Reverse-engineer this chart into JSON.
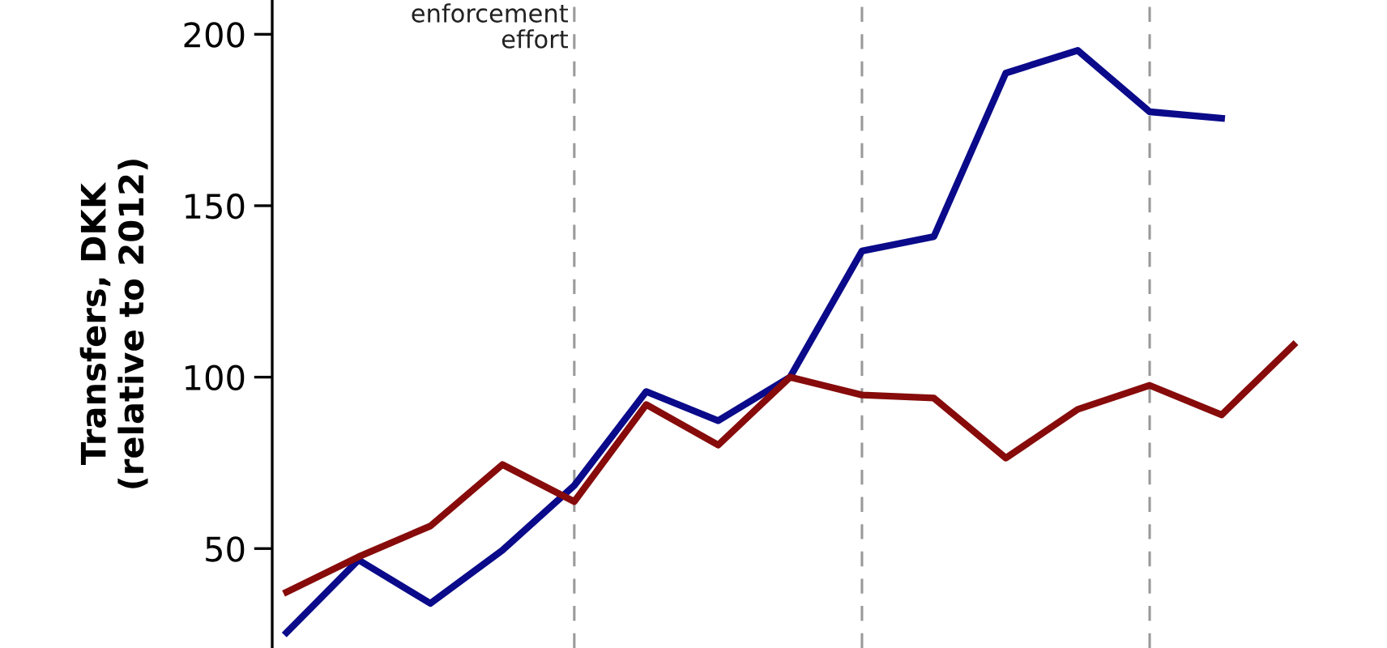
{
  "chart_data": {
    "type": "line",
    "ylabel": "Transfers, DKK\n(relative to 2012)",
    "categories": [
      null,
      null,
      null,
      null,
      null,
      null,
      null,
      null,
      null,
      null,
      null,
      null,
      null,
      null,
      null
    ],
    "series": [
      {
        "color": "#0a0a8a",
        "values": [
          25.5,
          46.7,
          34,
          49.5,
          68.4,
          95.8,
          87.3,
          100,
          136.8,
          141,
          188.7,
          195.3,
          177.4,
          175.5,
          null
        ]
      },
      {
        "color": "#870b0b",
        "values": [
          37.3,
          47.6,
          56.6,
          74.5,
          63.7,
          92,
          80.2,
          100,
          94.8,
          93.9,
          76.4,
          90.6,
          97.6,
          89,
          109.4
        ]
      }
    ],
    "ylim": [
      21,
      210
    ],
    "yticks": [
      50,
      100,
      150,
      200
    ],
    "grid": "x",
    "legend": false,
    "marker": "none",
    "line_style": "solid",
    "annotations": [
      "enforcement\neffort"
    ]
  }
}
